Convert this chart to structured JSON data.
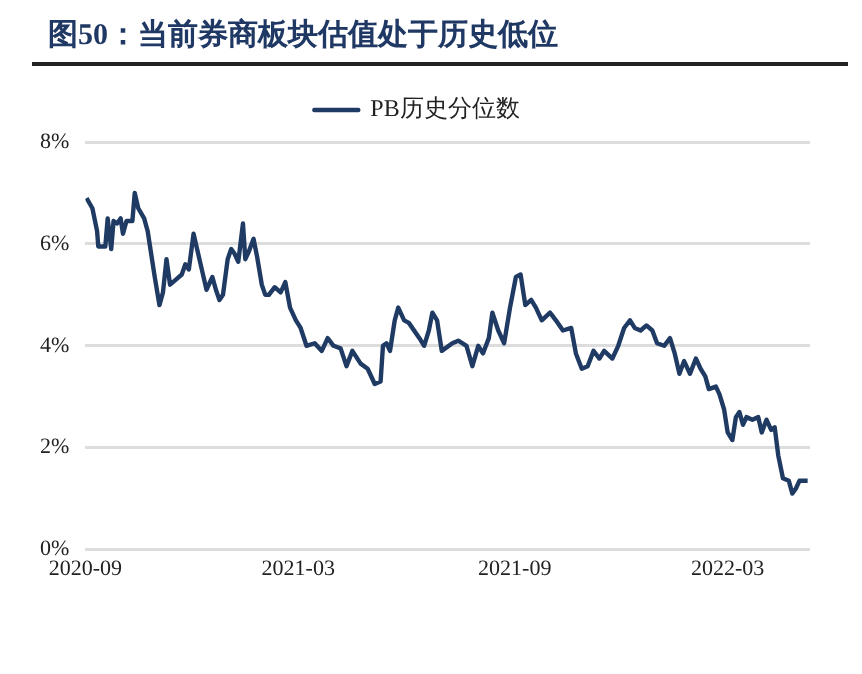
{
  "chart_data": {
    "type": "line",
    "title": "图50：当前券商板块估值处于历史低位",
    "x": [
      "2020-09-02",
      "2020-09-07",
      "2020-09-11",
      "2020-09-12",
      "2020-09-18",
      "2020-09-20",
      "2020-09-23",
      "2020-09-25",
      "2020-09-28",
      "2020-10-01",
      "2020-10-03",
      "2020-10-06",
      "2020-10-11",
      "2020-10-13",
      "2020-10-16",
      "2020-10-21",
      "2020-10-24",
      "2020-10-27",
      "2020-10-30",
      "2020-11-03",
      "2020-11-06",
      "2020-11-09",
      "2020-11-12",
      "2020-11-17",
      "2020-11-22",
      "2020-11-25",
      "2020-11-28",
      "2020-12-02",
      "2020-12-05",
      "2020-12-09",
      "2020-12-13",
      "2020-12-18",
      "2020-12-21",
      "2020-12-24",
      "2020-12-27",
      "2020-12-31",
      "2021-01-03",
      "2021-01-06",
      "2021-01-09",
      "2021-01-13",
      "2021-01-15",
      "2021-01-18",
      "2021-01-22",
      "2021-01-25",
      "2021-01-29",
      "2021-02-01",
      "2021-02-04",
      "2021-02-09",
      "2021-02-14",
      "2021-02-18",
      "2021-02-22",
      "2021-02-27",
      "2021-03-03",
      "2021-03-08",
      "2021-03-15",
      "2021-03-21",
      "2021-03-26",
      "2021-03-31",
      "2021-04-06",
      "2021-04-11",
      "2021-04-16",
      "2021-04-23",
      "2021-04-29",
      "2021-05-05",
      "2021-05-10",
      "2021-05-12",
      "2021-05-15",
      "2021-05-18",
      "2021-05-22",
      "2021-05-25",
      "2021-05-30",
      "2021-06-03",
      "2021-06-12",
      "2021-06-16",
      "2021-06-20",
      "2021-06-23",
      "2021-06-27",
      "2021-07-01",
      "2021-07-10",
      "2021-07-15",
      "2021-07-22",
      "2021-07-27",
      "2021-08-01",
      "2021-08-05",
      "2021-08-10",
      "2021-08-13",
      "2021-08-18",
      "2021-08-23",
      "2021-08-28",
      "2021-09-02",
      "2021-09-06",
      "2021-09-10",
      "2021-09-15",
      "2021-09-19",
      "2021-09-24",
      "2021-10-01",
      "2021-10-06",
      "2021-10-12",
      "2021-10-19",
      "2021-10-23",
      "2021-10-28",
      "2021-11-02",
      "2021-11-07",
      "2021-11-12",
      "2021-11-16",
      "2021-11-23",
      "2021-11-28",
      "2021-12-03",
      "2021-12-08",
      "2021-12-12",
      "2021-12-17",
      "2021-12-22",
      "2021-12-27",
      "2021-12-31",
      "2022-01-06",
      "2022-01-11",
      "2022-01-15",
      "2022-01-19",
      "2022-01-23",
      "2022-01-28",
      "2022-02-02",
      "2022-02-06",
      "2022-02-10",
      "2022-02-13",
      "2022-02-19",
      "2022-02-22",
      "2022-02-26",
      "2022-03-01",
      "2022-03-05",
      "2022-03-08",
      "2022-03-11",
      "2022-03-14",
      "2022-03-17",
      "2022-03-22",
      "2022-03-27",
      "2022-03-30",
      "2022-04-03",
      "2022-04-07",
      "2022-04-10",
      "2022-04-13",
      "2022-04-17",
      "2022-04-22",
      "2022-04-25",
      "2022-04-28",
      "2022-05-01",
      "2022-05-08"
    ],
    "series": [
      {
        "name": "PB历史分位数",
        "color": "#1f3a63",
        "values": [
          6.9,
          6.7,
          6.25,
          5.95,
          5.95,
          6.5,
          5.9,
          6.45,
          6.4,
          6.5,
          6.2,
          6.45,
          6.45,
          7.0,
          6.7,
          6.5,
          6.25,
          5.8,
          5.35,
          4.8,
          5.05,
          5.7,
          5.2,
          5.3,
          5.4,
          5.6,
          5.5,
          6.2,
          5.9,
          5.5,
          5.1,
          5.35,
          5.1,
          4.9,
          5.0,
          5.7,
          5.9,
          5.8,
          5.65,
          6.4,
          5.7,
          5.85,
          6.1,
          5.75,
          5.2,
          5.0,
          5.0,
          5.15,
          5.05,
          5.25,
          4.75,
          4.5,
          4.35,
          4.0,
          4.05,
          3.9,
          4.15,
          4.0,
          3.95,
          3.6,
          3.9,
          3.65,
          3.55,
          3.25,
          3.3,
          4.0,
          4.05,
          3.9,
          4.5,
          4.75,
          4.5,
          4.45,
          4.15,
          4.0,
          4.3,
          4.65,
          4.5,
          3.9,
          4.05,
          4.1,
          4.0,
          3.6,
          4.0,
          3.85,
          4.15,
          4.65,
          4.3,
          4.05,
          4.75,
          5.35,
          5.4,
          4.8,
          4.9,
          4.75,
          4.5,
          4.65,
          4.5,
          4.3,
          4.35,
          3.85,
          3.55,
          3.6,
          3.9,
          3.75,
          3.9,
          3.75,
          4.0,
          4.35,
          4.5,
          4.35,
          4.3,
          4.4,
          4.3,
          4.05,
          4.0,
          4.15,
          3.85,
          3.45,
          3.7,
          3.45,
          3.75,
          3.55,
          3.4,
          3.15,
          3.2,
          3.05,
          2.75,
          2.3,
          2.15,
          2.6,
          2.7,
          2.45,
          2.6,
          2.55,
          2.6,
          2.3,
          2.55,
          2.35,
          2.4,
          1.85,
          1.4,
          1.35,
          1.1,
          1.2,
          1.35,
          1.35
        ]
      }
    ],
    "xlim": [
      "2020-09-01",
      "2022-05-10"
    ],
    "xticks": [
      {
        "value": "2020-09-01",
        "label": "2020-09"
      },
      {
        "value": "2021-03-01",
        "label": "2021-03"
      },
      {
        "value": "2021-09-01",
        "label": "2021-09"
      },
      {
        "value": "2022-03-01",
        "label": "2022-03"
      }
    ],
    "ylim": [
      0,
      8
    ],
    "yticks": [
      {
        "value": 0,
        "label": "0%"
      },
      {
        "value": 2,
        "label": "2%"
      },
      {
        "value": 4,
        "label": "4%"
      },
      {
        "value": 6,
        "label": "6%"
      },
      {
        "value": 8,
        "label": "8%"
      }
    ],
    "grid": "y",
    "legend": "top",
    "marker": "none",
    "line_style": "solid"
  }
}
